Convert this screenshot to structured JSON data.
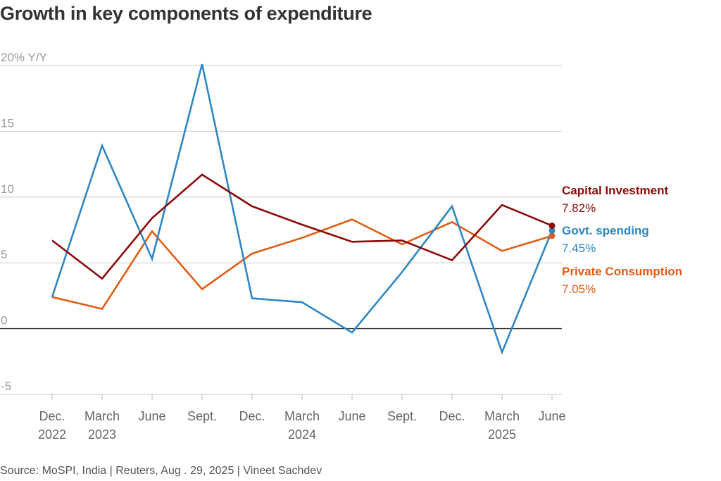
{
  "title": "Growth in key components of expenditure",
  "source": "Source: MoSPI, India | Reuters, Aug . 29, 2025 | Vineet Sachdev",
  "chart_data": {
    "type": "line",
    "title": "Growth in key components of expenditure",
    "ylabel": "20% Y/Y",
    "ylim": [
      -5,
      20
    ],
    "yticks": [
      {
        "value": 20,
        "label": "20% Y/Y"
      },
      {
        "value": 15,
        "label": "15"
      },
      {
        "value": 10,
        "label": "10"
      },
      {
        "value": 5,
        "label": "5"
      },
      {
        "value": 0,
        "label": "0"
      },
      {
        "value": -5,
        "label": "-5"
      }
    ],
    "categories": [
      {
        "line1": "Dec.",
        "line2": "2022"
      },
      {
        "line1": "March",
        "line2": "2023"
      },
      {
        "line1": "June",
        "line2": ""
      },
      {
        "line1": "Sept.",
        "line2": ""
      },
      {
        "line1": "Dec.",
        "line2": ""
      },
      {
        "line1": "March",
        "line2": "2024"
      },
      {
        "line1": "June",
        "line2": ""
      },
      {
        "line1": "Sept.",
        "line2": ""
      },
      {
        "line1": "Dec.",
        "line2": ""
      },
      {
        "line1": "March",
        "line2": "2025"
      },
      {
        "line1": "June",
        "line2": ""
      }
    ],
    "series": [
      {
        "name": "Capital Investment",
        "label": "7.82%",
        "color": "#8b0a0a",
        "values": [
          6.7,
          3.8,
          8.4,
          11.7,
          9.3,
          7.9,
          6.6,
          6.7,
          5.2,
          9.4,
          7.82
        ]
      },
      {
        "name": "Govt. spending",
        "label": "7.45%",
        "color": "#2f86c2",
        "values": [
          2.4,
          13.9,
          5.3,
          20.1,
          2.3,
          2.0,
          -0.3,
          4.3,
          9.3,
          -1.8,
          7.45
        ]
      },
      {
        "name": "Private Consumption",
        "label": "7.05%",
        "color": "#e35c14",
        "values": [
          2.4,
          1.5,
          7.4,
          3.0,
          5.7,
          6.9,
          8.3,
          6.4,
          8.1,
          5.9,
          7.05
        ]
      }
    ]
  }
}
